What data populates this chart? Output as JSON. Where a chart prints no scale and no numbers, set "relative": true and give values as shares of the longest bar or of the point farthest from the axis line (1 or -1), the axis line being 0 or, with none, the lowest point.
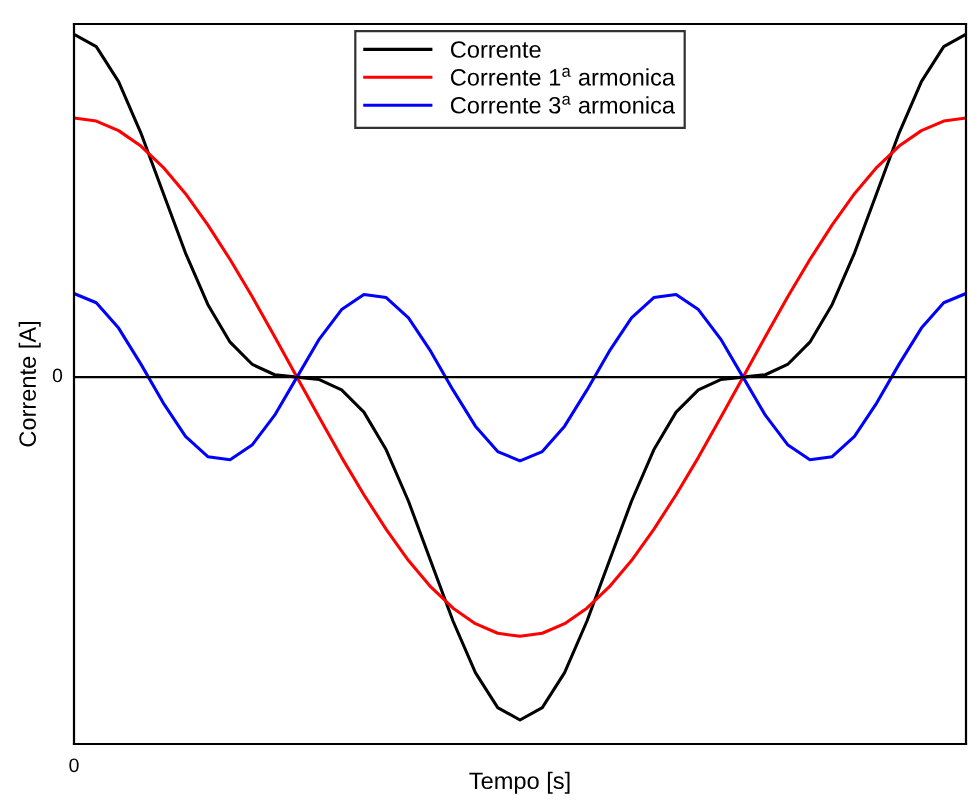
{
  "chart_data": {
    "type": "line",
    "relative": true,
    "xlabel": "Tempo [s]",
    "ylabel": "Corrente [A]",
    "legend": "top",
    "marker": "none",
    "line_style": "solid",
    "annotations": [
      "0"
    ],
    "categories": [
      null,
      null,
      null,
      null,
      null,
      null,
      null,
      null,
      null,
      null,
      null,
      null,
      null,
      null,
      null,
      null,
      null,
      null,
      null,
      null,
      null,
      null,
      null,
      null,
      null,
      null,
      null,
      null,
      null,
      null,
      null,
      null,
      null,
      null,
      null,
      null,
      null,
      null,
      null,
      null,
      null
    ],
    "ref_lines": [
      {
        "axis": "y",
        "value": 0,
        "label": "0",
        "color": "#000000",
        "line_style": "solid"
      }
    ],
    "series": [
      {
        "name": "Corrente",
        "color": "#000000",
        "values": [
          1.0,
          0.964,
          0.862,
          0.712,
          0.537,
          0.362,
          0.212,
          0.102,
          0.037,
          0.007,
          0,
          -0.007,
          -0.037,
          -0.102,
          -0.212,
          -0.362,
          -0.537,
          -0.712,
          -0.862,
          -0.964,
          -1.0,
          -0.964,
          -0.862,
          -0.712,
          -0.537,
          -0.362,
          -0.212,
          -0.102,
          -0.037,
          -0.007,
          0,
          0.007,
          0.037,
          0.102,
          0.212,
          0.362,
          0.537,
          0.712,
          0.862,
          0.964,
          1.0
        ]
      },
      {
        "name": "Corrente 1$^{a}$ armonica",
        "color": "#ff0000",
        "values": [
          0.756,
          0.747,
          0.719,
          0.674,
          0.612,
          0.535,
          0.444,
          0.343,
          0.234,
          0.118,
          0,
          -0.118,
          -0.234,
          -0.343,
          -0.444,
          -0.535,
          -0.612,
          -0.674,
          -0.719,
          -0.747,
          -0.756,
          -0.747,
          -0.719,
          -0.674,
          -0.612,
          -0.535,
          -0.444,
          -0.343,
          -0.234,
          -0.118,
          0,
          0.118,
          0.234,
          0.343,
          0.444,
          0.535,
          0.612,
          0.674,
          0.719,
          0.747,
          0.756
        ]
      },
      {
        "name": "Corrente 3$^{a}$ armonica",
        "color": "#0000ff",
        "values": [
          0.244,
          0.217,
          0.143,
          0.038,
          -0.075,
          -0.173,
          -0.232,
          -0.241,
          -0.197,
          -0.111,
          0,
          0.111,
          0.197,
          0.241,
          0.232,
          0.173,
          0.075,
          -0.038,
          -0.143,
          -0.217,
          -0.244,
          -0.217,
          -0.143,
          -0.038,
          0.075,
          0.173,
          0.232,
          0.241,
          0.197,
          0.111,
          0,
          -0.111,
          -0.197,
          -0.241,
          -0.232,
          -0.173,
          -0.075,
          0.038,
          0.143,
          0.217,
          0.244
        ]
      }
    ]
  }
}
